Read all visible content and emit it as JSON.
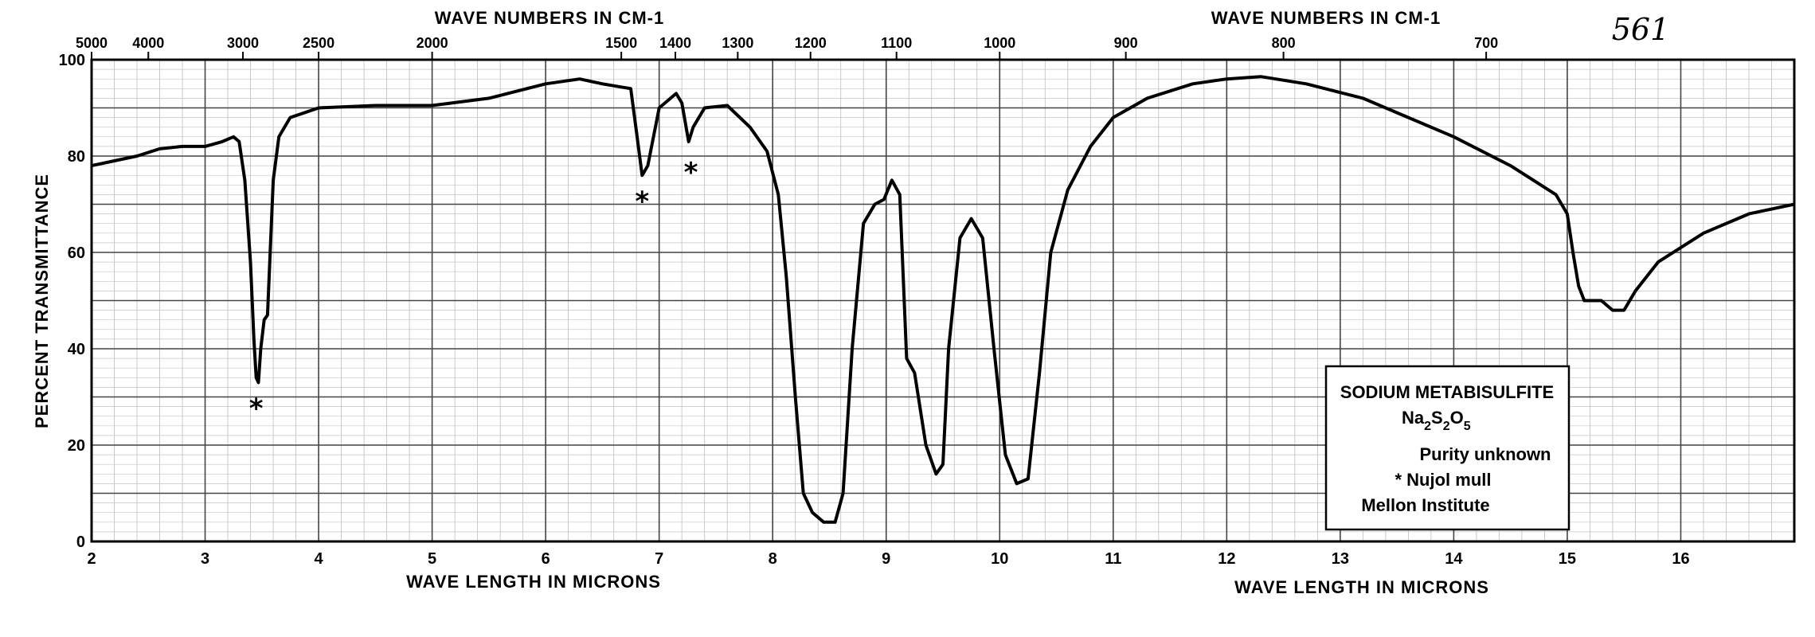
{
  "handwritten_note": "561",
  "chart_data": {
    "type": "line",
    "top_axis_label_left": "WAVE NUMBERS IN CM-1",
    "top_axis_label_right": "WAVE NUMBERS IN CM-1",
    "bottom_axis_label_left": "WAVE LENGTH IN MICRONS",
    "bottom_axis_label_right": "WAVE LENGTH IN MICRONS",
    "ylabel": "PERCENT TRANSMITTANCE",
    "xlim": [
      2,
      17
    ],
    "ylim": [
      0,
      100
    ],
    "grid": true,
    "x_ticks": [
      {
        "v": 2,
        "label": "2"
      },
      {
        "v": 3,
        "label": "3"
      },
      {
        "v": 4,
        "label": "4"
      },
      {
        "v": 5,
        "label": "5"
      },
      {
        "v": 6,
        "label": "6"
      },
      {
        "v": 7,
        "label": "7"
      },
      {
        "v": 8,
        "label": "8"
      },
      {
        "v": 9,
        "label": "9"
      },
      {
        "v": 10,
        "label": "10"
      },
      {
        "v": 11,
        "label": "11"
      },
      {
        "v": 12,
        "label": "12"
      },
      {
        "v": 13,
        "label": "13"
      },
      {
        "v": 14,
        "label": "14"
      },
      {
        "v": 15,
        "label": "15"
      },
      {
        "v": 16,
        "label": "16"
      }
    ],
    "y_ticks": [
      {
        "v": 0,
        "label": "0"
      },
      {
        "v": 20,
        "label": "20"
      },
      {
        "v": 40,
        "label": "40"
      },
      {
        "v": 60,
        "label": "60"
      },
      {
        "v": 80,
        "label": "80"
      },
      {
        "v": 100,
        "label": "100"
      }
    ],
    "top_ticks": [
      {
        "wn": 5000,
        "label": "5000"
      },
      {
        "wn": 4000,
        "label": "4000"
      },
      {
        "wn": 3000,
        "label": "3000"
      },
      {
        "wn": 2500,
        "label": "2500"
      },
      {
        "wn": 2000,
        "label": "2000"
      },
      {
        "wn": 1500,
        "label": "1500"
      },
      {
        "wn": 1400,
        "label": "1400"
      },
      {
        "wn": 1300,
        "label": "1300"
      },
      {
        "wn": 1200,
        "label": "1200"
      },
      {
        "wn": 1100,
        "label": "1100"
      },
      {
        "wn": 1000,
        "label": "1000"
      },
      {
        "wn": 900,
        "label": "900"
      },
      {
        "wn": 800,
        "label": "800"
      },
      {
        "wn": 700,
        "label": "700"
      }
    ],
    "series": [
      {
        "color": "#000000",
        "points": [
          [
            2.0,
            78
          ],
          [
            2.2,
            79
          ],
          [
            2.4,
            80
          ],
          [
            2.6,
            81.5
          ],
          [
            2.8,
            82
          ],
          [
            3.0,
            82
          ],
          [
            3.15,
            83
          ],
          [
            3.25,
            84
          ],
          [
            3.3,
            83
          ],
          [
            3.35,
            75
          ],
          [
            3.4,
            58
          ],
          [
            3.43,
            42
          ],
          [
            3.45,
            34
          ],
          [
            3.47,
            33
          ],
          [
            3.49,
            40
          ],
          [
            3.52,
            46
          ],
          [
            3.55,
            47
          ],
          [
            3.6,
            75
          ],
          [
            3.65,
            84
          ],
          [
            3.75,
            88
          ],
          [
            4.0,
            90
          ],
          [
            4.5,
            90.5
          ],
          [
            5.0,
            90.5
          ],
          [
            5.5,
            92
          ],
          [
            6.0,
            95
          ],
          [
            6.3,
            96
          ],
          [
            6.5,
            95
          ],
          [
            6.75,
            94
          ],
          [
            6.8,
            85
          ],
          [
            6.85,
            76
          ],
          [
            6.9,
            78
          ],
          [
            7.0,
            90
          ],
          [
            7.15,
            93
          ],
          [
            7.2,
            91
          ],
          [
            7.26,
            83
          ],
          [
            7.3,
            86
          ],
          [
            7.4,
            90
          ],
          [
            7.6,
            90.5
          ],
          [
            7.8,
            86
          ],
          [
            7.95,
            81
          ],
          [
            8.05,
            72
          ],
          [
            8.12,
            55
          ],
          [
            8.2,
            30
          ],
          [
            8.27,
            10
          ],
          [
            8.35,
            6
          ],
          [
            8.45,
            4
          ],
          [
            8.55,
            4
          ],
          [
            8.62,
            10
          ],
          [
            8.7,
            40
          ],
          [
            8.8,
            66
          ],
          [
            8.9,
            70
          ],
          [
            8.98,
            71
          ],
          [
            9.05,
            75
          ],
          [
            9.12,
            72
          ],
          [
            9.18,
            38
          ],
          [
            9.25,
            35
          ],
          [
            9.35,
            20
          ],
          [
            9.44,
            14
          ],
          [
            9.5,
            16
          ],
          [
            9.55,
            40
          ],
          [
            9.65,
            63
          ],
          [
            9.75,
            67
          ],
          [
            9.85,
            63
          ],
          [
            9.95,
            40
          ],
          [
            10.05,
            18
          ],
          [
            10.15,
            12
          ],
          [
            10.25,
            13
          ],
          [
            10.35,
            35
          ],
          [
            10.45,
            60
          ],
          [
            10.6,
            73
          ],
          [
            10.8,
            82
          ],
          [
            11.0,
            88
          ],
          [
            11.3,
            92
          ],
          [
            11.7,
            95
          ],
          [
            12.0,
            96
          ],
          [
            12.3,
            96.5
          ],
          [
            12.7,
            95
          ],
          [
            13.2,
            92
          ],
          [
            13.6,
            88
          ],
          [
            14.0,
            84
          ],
          [
            14.5,
            78
          ],
          [
            14.9,
            72
          ],
          [
            15.0,
            68
          ],
          [
            15.05,
            60
          ],
          [
            15.1,
            53
          ],
          [
            15.15,
            50
          ],
          [
            15.3,
            50
          ],
          [
            15.4,
            48
          ],
          [
            15.5,
            48
          ],
          [
            15.6,
            52
          ],
          [
            15.8,
            58
          ],
          [
            16.2,
            64
          ],
          [
            16.6,
            68
          ],
          [
            17.0,
            70
          ]
        ]
      }
    ],
    "annotations": [
      {
        "text": "*",
        "x": 3.45,
        "y": 28
      },
      {
        "text": "*",
        "x": 6.85,
        "y": 71
      },
      {
        "text": "*",
        "x": 7.28,
        "y": 77
      }
    ],
    "legend": {
      "title": "SODIUM METABISULFITE",
      "formula_parts": [
        "Na",
        "2",
        "S",
        "2",
        "O",
        "5"
      ],
      "lines": [
        "Purity unknown",
        "* Nujol mull",
        "Mellon Institute"
      ]
    }
  }
}
